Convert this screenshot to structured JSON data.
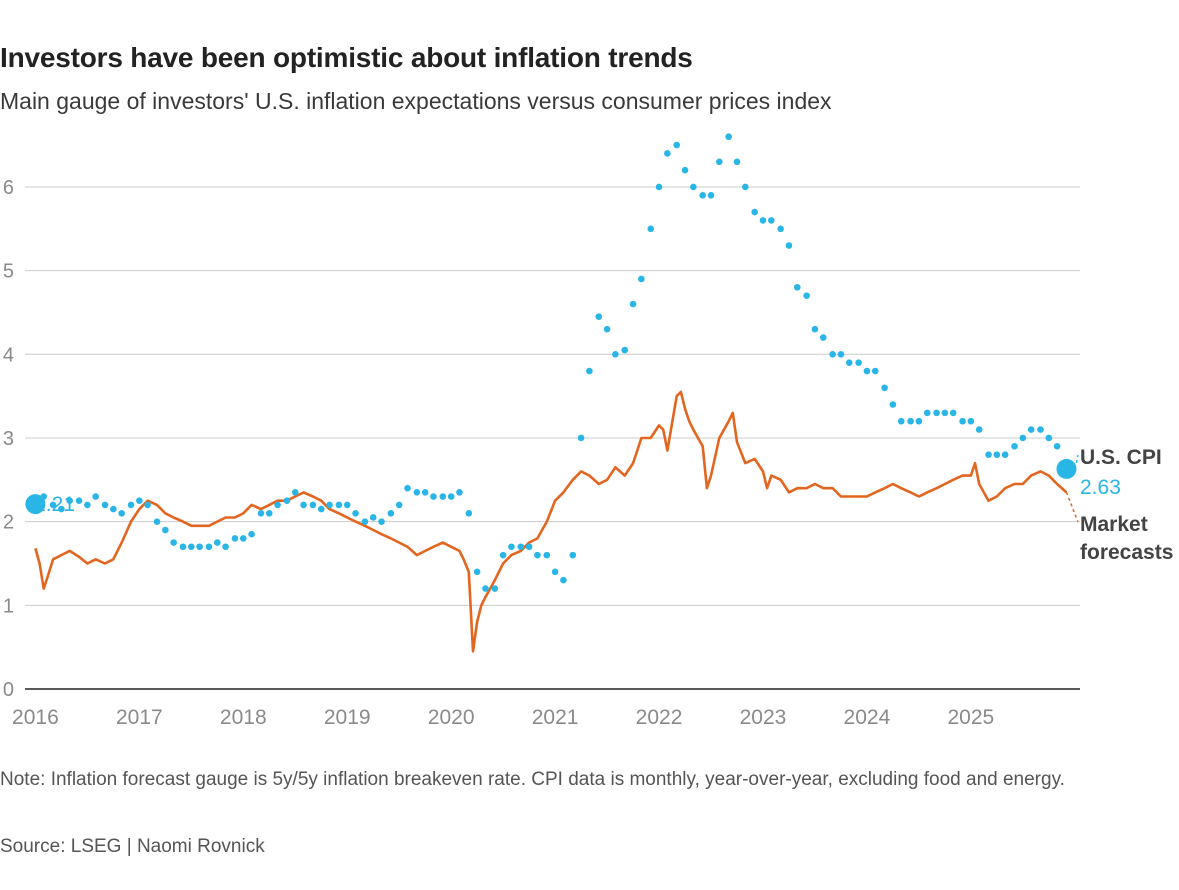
{
  "header": {
    "title": "Investors have been optimistic about inflation trends",
    "subtitle": "Main gauge of investors' U.S. inflation expectations versus consumer prices index"
  },
  "footer": {
    "note": "Note: Inflation forecast gauge is 5y/5y inflation breakeven rate. CPI data is monthly, year-over-year, excluding food and energy.",
    "source": "Source: LSEG | Naomi Rovnick"
  },
  "colors": {
    "cpi": "#29b6e6",
    "forecast": "#e2661f",
    "grid": "#cccccc",
    "axis": "#222222",
    "tick": "#8a8a8a",
    "label": "#444444"
  },
  "chart_data": {
    "type": "line",
    "title": "Investors have been optimistic about inflation trends",
    "xlabel": "",
    "ylabel": "",
    "xlim": [
      2015.9,
      2026.05
    ],
    "ylim": [
      0,
      6.8
    ],
    "y_ticks": [
      0,
      1,
      2,
      3,
      4,
      5,
      6
    ],
    "x_ticks": [
      2016,
      2017,
      2018,
      2019,
      2020,
      2021,
      2022,
      2023,
      2024,
      2025
    ],
    "grid": true,
    "series": [
      {
        "name": "U.S. CPI",
        "style": "dots",
        "end_value": "2.63",
        "start_value": "2.21",
        "label": "U.S. CPI",
        "points": [
          [
            2016.0,
            2.21
          ],
          [
            2016.08,
            2.3
          ],
          [
            2016.17,
            2.2
          ],
          [
            2016.25,
            2.15
          ],
          [
            2016.33,
            2.25
          ],
          [
            2016.42,
            2.25
          ],
          [
            2016.5,
            2.2
          ],
          [
            2016.58,
            2.3
          ],
          [
            2016.67,
            2.2
          ],
          [
            2016.75,
            2.15
          ],
          [
            2016.83,
            2.1
          ],
          [
            2016.92,
            2.2
          ],
          [
            2017.0,
            2.25
          ],
          [
            2017.08,
            2.2
          ],
          [
            2017.17,
            2.0
          ],
          [
            2017.25,
            1.9
          ],
          [
            2017.33,
            1.75
          ],
          [
            2017.42,
            1.7
          ],
          [
            2017.5,
            1.7
          ],
          [
            2017.58,
            1.7
          ],
          [
            2017.67,
            1.7
          ],
          [
            2017.75,
            1.75
          ],
          [
            2017.83,
            1.7
          ],
          [
            2017.92,
            1.8
          ],
          [
            2018.0,
            1.8
          ],
          [
            2018.08,
            1.85
          ],
          [
            2018.17,
            2.1
          ],
          [
            2018.25,
            2.1
          ],
          [
            2018.33,
            2.2
          ],
          [
            2018.42,
            2.25
          ],
          [
            2018.5,
            2.35
          ],
          [
            2018.58,
            2.2
          ],
          [
            2018.67,
            2.2
          ],
          [
            2018.75,
            2.15
          ],
          [
            2018.83,
            2.2
          ],
          [
            2018.92,
            2.2
          ],
          [
            2019.0,
            2.2
          ],
          [
            2019.08,
            2.1
          ],
          [
            2019.17,
            2.0
          ],
          [
            2019.25,
            2.05
          ],
          [
            2019.33,
            2.0
          ],
          [
            2019.42,
            2.1
          ],
          [
            2019.5,
            2.2
          ],
          [
            2019.58,
            2.4
          ],
          [
            2019.67,
            2.35
          ],
          [
            2019.75,
            2.35
          ],
          [
            2019.83,
            2.3
          ],
          [
            2019.92,
            2.3
          ],
          [
            2020.0,
            2.3
          ],
          [
            2020.08,
            2.35
          ],
          [
            2020.17,
            2.1
          ],
          [
            2020.25,
            1.4
          ],
          [
            2020.33,
            1.2
          ],
          [
            2020.42,
            1.2
          ],
          [
            2020.5,
            1.6
          ],
          [
            2020.58,
            1.7
          ],
          [
            2020.67,
            1.7
          ],
          [
            2020.75,
            1.7
          ],
          [
            2020.83,
            1.6
          ],
          [
            2020.92,
            1.6
          ],
          [
            2021.0,
            1.4
          ],
          [
            2021.08,
            1.3
          ],
          [
            2021.17,
            1.6
          ],
          [
            2021.25,
            3.0
          ],
          [
            2021.33,
            3.8
          ],
          [
            2021.42,
            4.45
          ],
          [
            2021.5,
            4.3
          ],
          [
            2021.58,
            4.0
          ],
          [
            2021.67,
            4.05
          ],
          [
            2021.75,
            4.6
          ],
          [
            2021.83,
            4.9
          ],
          [
            2021.92,
            5.5
          ],
          [
            2022.0,
            6.0
          ],
          [
            2022.08,
            6.4
          ],
          [
            2022.17,
            6.5
          ],
          [
            2022.25,
            6.2
          ],
          [
            2022.33,
            6.0
          ],
          [
            2022.42,
            5.9
          ],
          [
            2022.5,
            5.9
          ],
          [
            2022.58,
            6.3
          ],
          [
            2022.67,
            6.6
          ],
          [
            2022.75,
            6.3
          ],
          [
            2022.83,
            6.0
          ],
          [
            2022.92,
            5.7
          ],
          [
            2023.0,
            5.6
          ],
          [
            2023.08,
            5.6
          ],
          [
            2023.17,
            5.5
          ],
          [
            2023.25,
            5.3
          ],
          [
            2023.33,
            4.8
          ],
          [
            2023.42,
            4.7
          ],
          [
            2023.5,
            4.3
          ],
          [
            2023.58,
            4.2
          ],
          [
            2023.67,
            4.0
          ],
          [
            2023.75,
            4.0
          ],
          [
            2023.83,
            3.9
          ],
          [
            2023.92,
            3.9
          ],
          [
            2024.0,
            3.8
          ],
          [
            2024.08,
            3.8
          ],
          [
            2024.17,
            3.6
          ],
          [
            2024.25,
            3.4
          ],
          [
            2024.33,
            3.2
          ],
          [
            2024.42,
            3.2
          ],
          [
            2024.5,
            3.2
          ],
          [
            2024.58,
            3.3
          ],
          [
            2024.67,
            3.3
          ],
          [
            2024.75,
            3.3
          ],
          [
            2024.83,
            3.3
          ],
          [
            2024.92,
            3.2
          ],
          [
            2025.0,
            3.2
          ],
          [
            2025.08,
            3.1
          ],
          [
            2025.17,
            2.8
          ],
          [
            2025.25,
            2.8
          ],
          [
            2025.33,
            2.8
          ],
          [
            2025.42,
            2.9
          ],
          [
            2025.5,
            3.0
          ],
          [
            2025.58,
            3.1
          ],
          [
            2025.67,
            3.1
          ],
          [
            2025.75,
            3.0
          ],
          [
            2025.83,
            2.9
          ],
          [
            2025.92,
            2.63
          ]
        ]
      },
      {
        "name": "Market forecasts",
        "style": "line",
        "label": "Market forecasts",
        "points": [
          [
            2016.0,
            1.68
          ],
          [
            2016.04,
            1.5
          ],
          [
            2016.08,
            1.2
          ],
          [
            2016.12,
            1.35
          ],
          [
            2016.17,
            1.55
          ],
          [
            2016.25,
            1.6
          ],
          [
            2016.33,
            1.65
          ],
          [
            2016.42,
            1.58
          ],
          [
            2016.5,
            1.5
          ],
          [
            2016.58,
            1.55
          ],
          [
            2016.67,
            1.5
          ],
          [
            2016.75,
            1.55
          ],
          [
            2016.83,
            1.75
          ],
          [
            2016.92,
            2.0
          ],
          [
            2017.0,
            2.15
          ],
          [
            2017.08,
            2.25
          ],
          [
            2017.17,
            2.2
          ],
          [
            2017.25,
            2.1
          ],
          [
            2017.33,
            2.05
          ],
          [
            2017.42,
            2.0
          ],
          [
            2017.5,
            1.95
          ],
          [
            2017.58,
            1.95
          ],
          [
            2017.67,
            1.95
          ],
          [
            2017.75,
            2.0
          ],
          [
            2017.83,
            2.05
          ],
          [
            2017.92,
            2.05
          ],
          [
            2018.0,
            2.1
          ],
          [
            2018.08,
            2.2
          ],
          [
            2018.17,
            2.15
          ],
          [
            2018.25,
            2.2
          ],
          [
            2018.33,
            2.25
          ],
          [
            2018.42,
            2.25
          ],
          [
            2018.5,
            2.3
          ],
          [
            2018.58,
            2.35
          ],
          [
            2018.67,
            2.3
          ],
          [
            2018.75,
            2.25
          ],
          [
            2018.83,
            2.15
          ],
          [
            2018.92,
            2.1
          ],
          [
            2019.0,
            2.05
          ],
          [
            2019.08,
            2.0
          ],
          [
            2019.17,
            1.95
          ],
          [
            2019.25,
            1.9
          ],
          [
            2019.33,
            1.85
          ],
          [
            2019.42,
            1.8
          ],
          [
            2019.5,
            1.75
          ],
          [
            2019.58,
            1.7
          ],
          [
            2019.67,
            1.6
          ],
          [
            2019.75,
            1.65
          ],
          [
            2019.83,
            1.7
          ],
          [
            2019.92,
            1.75
          ],
          [
            2020.0,
            1.7
          ],
          [
            2020.08,
            1.65
          ],
          [
            2020.12,
            1.55
          ],
          [
            2020.17,
            1.4
          ],
          [
            2020.21,
            0.45
          ],
          [
            2020.25,
            0.8
          ],
          [
            2020.29,
            1.0
          ],
          [
            2020.33,
            1.1
          ],
          [
            2020.42,
            1.3
          ],
          [
            2020.5,
            1.5
          ],
          [
            2020.58,
            1.6
          ],
          [
            2020.67,
            1.65
          ],
          [
            2020.75,
            1.75
          ],
          [
            2020.83,
            1.8
          ],
          [
            2020.92,
            2.0
          ],
          [
            2021.0,
            2.25
          ],
          [
            2021.08,
            2.35
          ],
          [
            2021.17,
            2.5
          ],
          [
            2021.25,
            2.6
          ],
          [
            2021.33,
            2.55
          ],
          [
            2021.42,
            2.45
          ],
          [
            2021.5,
            2.5
          ],
          [
            2021.58,
            2.65
          ],
          [
            2021.67,
            2.55
          ],
          [
            2021.75,
            2.7
          ],
          [
            2021.83,
            3.0
          ],
          [
            2021.92,
            3.0
          ],
          [
            2022.0,
            3.15
          ],
          [
            2022.04,
            3.1
          ],
          [
            2022.08,
            2.85
          ],
          [
            2022.17,
            3.5
          ],
          [
            2022.21,
            3.55
          ],
          [
            2022.25,
            3.35
          ],
          [
            2022.29,
            3.2
          ],
          [
            2022.33,
            3.1
          ],
          [
            2022.42,
            2.9
          ],
          [
            2022.46,
            2.4
          ],
          [
            2022.5,
            2.55
          ],
          [
            2022.58,
            3.0
          ],
          [
            2022.67,
            3.2
          ],
          [
            2022.71,
            3.3
          ],
          [
            2022.75,
            2.95
          ],
          [
            2022.83,
            2.7
          ],
          [
            2022.92,
            2.75
          ],
          [
            2023.0,
            2.6
          ],
          [
            2023.04,
            2.4
          ],
          [
            2023.08,
            2.55
          ],
          [
            2023.17,
            2.5
          ],
          [
            2023.25,
            2.35
          ],
          [
            2023.33,
            2.4
          ],
          [
            2023.42,
            2.4
          ],
          [
            2023.5,
            2.45
          ],
          [
            2023.58,
            2.4
          ],
          [
            2023.67,
            2.4
          ],
          [
            2023.75,
            2.3
          ],
          [
            2023.83,
            2.3
          ],
          [
            2023.92,
            2.3
          ],
          [
            2024.0,
            2.3
          ],
          [
            2024.08,
            2.35
          ],
          [
            2024.17,
            2.4
          ],
          [
            2024.25,
            2.45
          ],
          [
            2024.33,
            2.4
          ],
          [
            2024.42,
            2.35
          ],
          [
            2024.5,
            2.3
          ],
          [
            2024.58,
            2.35
          ],
          [
            2024.67,
            2.4
          ],
          [
            2024.75,
            2.45
          ],
          [
            2024.83,
            2.5
          ],
          [
            2024.92,
            2.55
          ],
          [
            2025.0,
            2.55
          ],
          [
            2025.04,
            2.7
          ],
          [
            2025.08,
            2.45
          ],
          [
            2025.17,
            2.25
          ],
          [
            2025.25,
            2.3
          ],
          [
            2025.33,
            2.4
          ],
          [
            2025.42,
            2.45
          ],
          [
            2025.5,
            2.45
          ],
          [
            2025.58,
            2.55
          ],
          [
            2025.67,
            2.6
          ],
          [
            2025.75,
            2.55
          ],
          [
            2025.83,
            2.45
          ],
          [
            2025.92,
            2.35
          ]
        ]
      }
    ],
    "annotations": [
      {
        "text": "2.21",
        "target_series": "U.S. CPI",
        "position": "start"
      },
      {
        "text": "U.S. CPI",
        "target_series": "U.S. CPI",
        "position": "end"
      },
      {
        "text": "2.63",
        "target_series": "U.S. CPI",
        "position": "end"
      },
      {
        "text": "Market forecasts",
        "target_series": "Market forecasts",
        "position": "end"
      }
    ]
  }
}
